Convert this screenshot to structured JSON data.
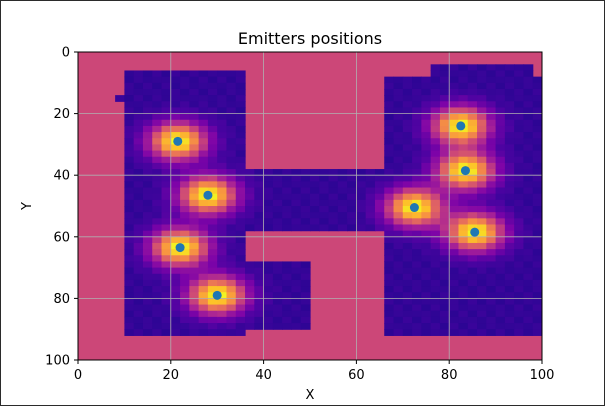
{
  "chart_data": {
    "type": "heatmap",
    "title": "Emitters positions",
    "xlabel": "X",
    "ylabel": "Y",
    "xlim": [
      0,
      100
    ],
    "ylim": [
      100,
      0
    ],
    "xticks": [
      0,
      20,
      40,
      60,
      80,
      100
    ],
    "yticks": [
      0,
      20,
      40,
      60,
      80,
      100
    ],
    "grid": true,
    "colormap": "plasma",
    "background_color": "#cc4778",
    "point_color": "#1f77b4",
    "emitters": [
      {
        "x": 21.5,
        "y": 29
      },
      {
        "x": 28,
        "y": 46.5
      },
      {
        "x": 22,
        "y": 63.5
      },
      {
        "x": 30,
        "y": 79
      },
      {
        "x": 72.5,
        "y": 50.5
      },
      {
        "x": 82.5,
        "y": 24
      },
      {
        "x": 83.5,
        "y": 38.5
      },
      {
        "x": 85.5,
        "y": 58.5
      }
    ]
  }
}
